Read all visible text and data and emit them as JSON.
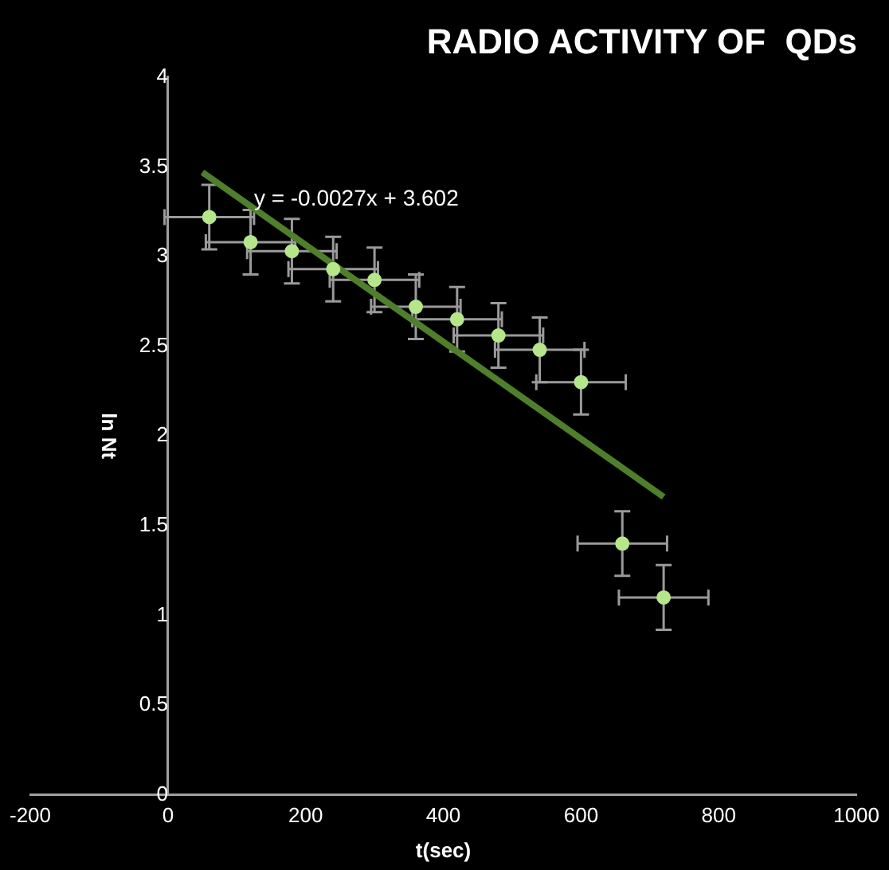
{
  "chart_data": {
    "type": "scatter",
    "title": "RADIO ACTIVITY OF  QDs",
    "xlabel": "t(sec)",
    "ylabel": "ln Nt",
    "xlim": [
      -200,
      1000
    ],
    "xticks": [
      -200,
      0,
      200,
      400,
      600,
      800,
      1000
    ],
    "ylim": [
      0,
      4
    ],
    "yticks": [
      0,
      0.5,
      1,
      1.5,
      2,
      2.5,
      3,
      3.5,
      4
    ],
    "grid": false,
    "legend": false,
    "marker": "circle",
    "series": [
      {
        "color": "#b5e68a",
        "x": [
          60,
          120,
          180,
          240,
          300,
          360,
          420,
          480,
          540,
          600,
          660,
          720
        ],
        "values": [
          3.22,
          3.08,
          3.03,
          2.93,
          2.87,
          2.72,
          2.65,
          2.56,
          2.48,
          2.3,
          1.4,
          1.1
        ],
        "errors": [
          0.18,
          0.18,
          0.18,
          0.18,
          0.18,
          0.18,
          0.18,
          0.18,
          0.18,
          0.18,
          0.18,
          0.18
        ],
        "xerrors": [
          65,
          65,
          65,
          65,
          65,
          65,
          65,
          65,
          65,
          65,
          65,
          65
        ]
      },
      {
        "type": "line",
        "marker": "none",
        "color": "#4f7f2a",
        "x": [
          50,
          720
        ],
        "values": [
          3.47,
          1.66
        ]
      }
    ],
    "annotations": [
      {
        "text": "y = -0.0027x + 3.602",
        "x": 125,
        "y": 3.32
      }
    ]
  }
}
